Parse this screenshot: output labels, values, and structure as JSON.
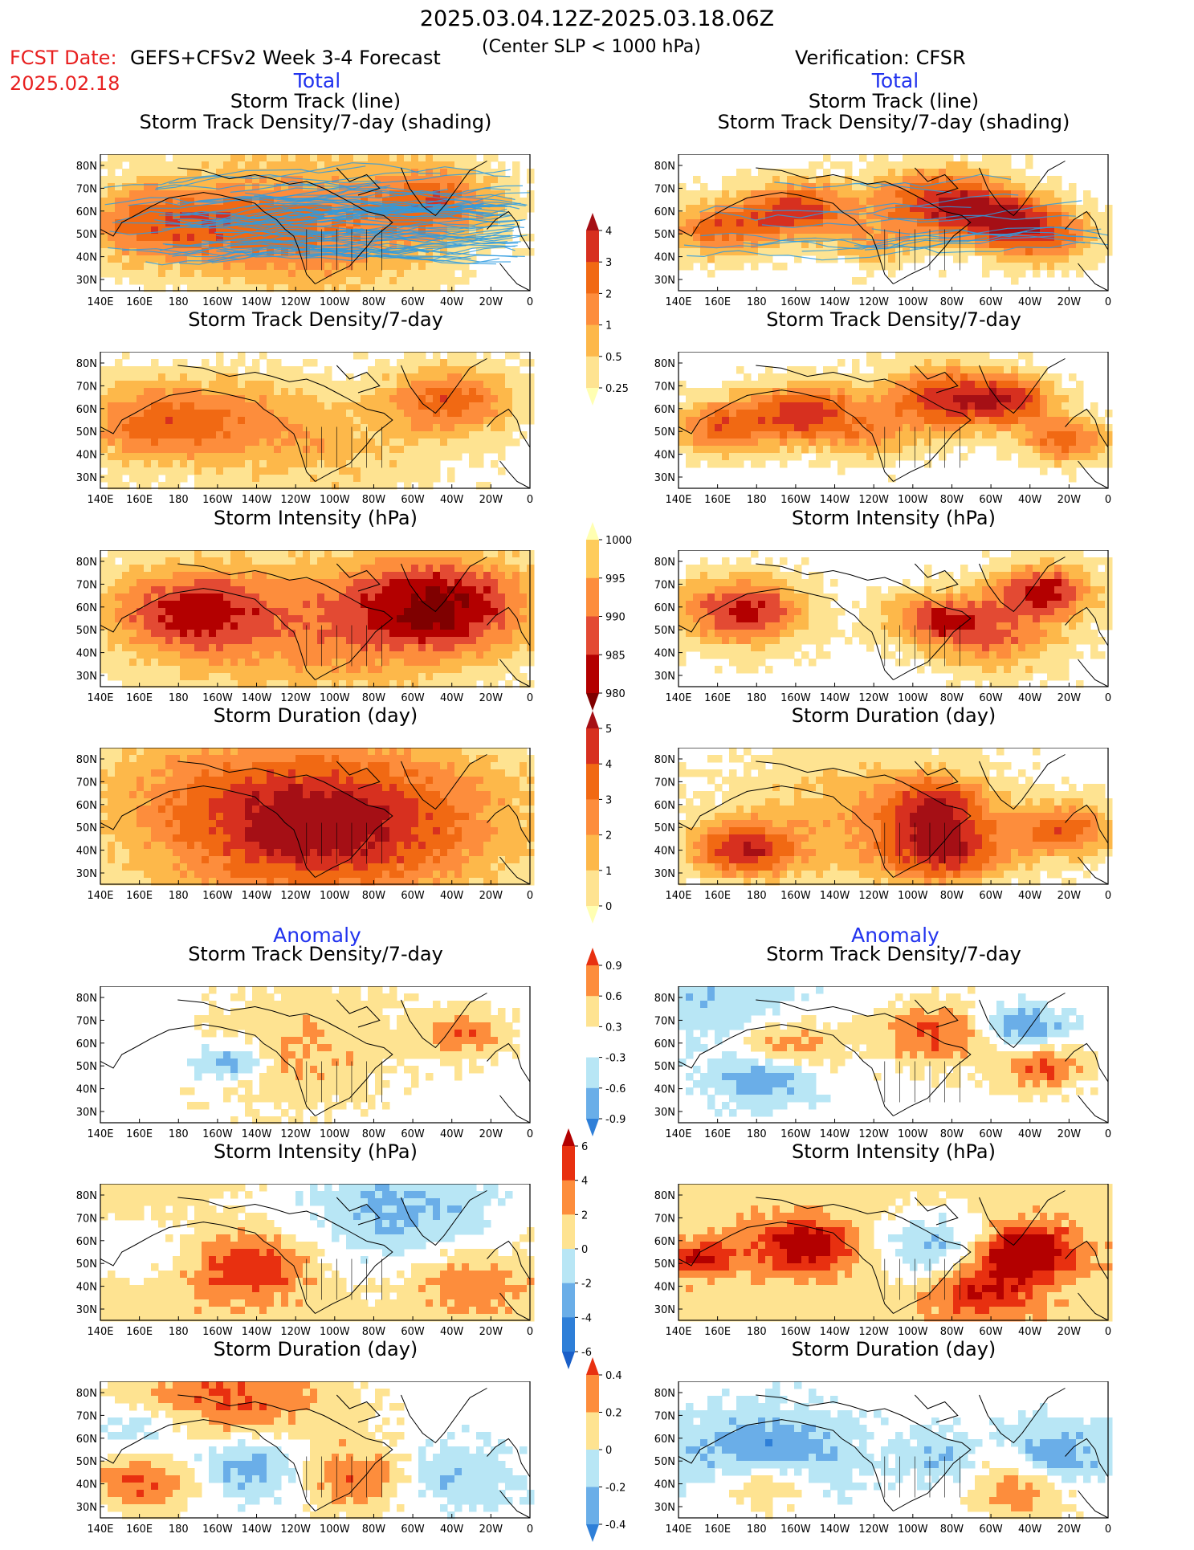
{
  "header": {
    "period": "2025.03.04.12Z-2025.03.18.06Z",
    "subtitle": "(Center SLP < 1000 hPa)",
    "fcst_label": "FCST Date:",
    "fcst_date": "2025.02.18",
    "model": "GEFS+CFSv2 Week 3-4 Forecast",
    "verification": "Verification: CFSR"
  },
  "sections": {
    "total": "Total",
    "anomaly": "Anomaly"
  },
  "axes": {
    "lat_ticks": [
      "80N",
      "70N",
      "60N",
      "50N",
      "40N",
      "30N"
    ],
    "lon_ticks": [
      "140E",
      "160E",
      "180",
      "160W",
      "140W",
      "120W",
      "100W",
      "80W",
      "60W",
      "40W",
      "20W",
      "0"
    ]
  },
  "panels": [
    {
      "title1": "Storm Track (line)",
      "title2": "Storm Track Density/7-day (shading)",
      "palette": "density",
      "pattern": "fcst_track",
      "tracks": true
    },
    {
      "title1": "Storm Track (line)",
      "title2": "Storm Track Density/7-day (shading)",
      "palette": "density",
      "pattern": "obs_track",
      "tracks": true
    },
    {
      "title1": "Storm Track Density/7-day",
      "palette": "density",
      "pattern": "fcst_density"
    },
    {
      "title1": "Storm Track Density/7-day",
      "palette": "density",
      "pattern": "obs_density"
    },
    {
      "title1": "Storm Intensity (hPa)",
      "palette": "intensity",
      "pattern": "fcst_intensity"
    },
    {
      "title1": "Storm Intensity (hPa)",
      "palette": "intensity",
      "pattern": "obs_intensity"
    },
    {
      "title1": "Storm Duration (day)",
      "palette": "duration",
      "pattern": "fcst_duration"
    },
    {
      "title1": "Storm Duration (day)",
      "palette": "duration",
      "pattern": "obs_duration"
    },
    {
      "title1": "Storm Track Density/7-day",
      "palette": "anom",
      "pattern": "fcst_anom_density"
    },
    {
      "title1": "Storm Track Density/7-day",
      "palette": "anom",
      "pattern": "obs_anom_density"
    },
    {
      "title1": "Storm Intensity (hPa)",
      "palette": "anom_int",
      "pattern": "fcst_anom_intensity"
    },
    {
      "title1": "Storm Intensity (hPa)",
      "palette": "anom_int",
      "pattern": "obs_anom_intensity"
    },
    {
      "title1": "Storm Duration (day)",
      "palette": "anom",
      "pattern": "fcst_anom_duration"
    },
    {
      "title1": "Storm Duration (day)",
      "palette": "anom",
      "pattern": "obs_anom_duration"
    }
  ],
  "colorbars": [
    {
      "name": "density",
      "labels": [
        "4",
        "3",
        "2",
        "1",
        "0.5",
        "0.25"
      ],
      "colors": [
        "#a50f15",
        "#d7301f",
        "#f16913",
        "#fd8d3c",
        "#fdb84a",
        "#fee391",
        "#ffffb2"
      ]
    },
    {
      "name": "intensity",
      "labels": [
        "1000",
        "995",
        "990",
        "985",
        "980"
      ],
      "colors": [
        "#ffffb2",
        "#fecc5c",
        "#fd8d3c",
        "#e34a33",
        "#b30000",
        "#7f0000"
      ]
    },
    {
      "name": "duration",
      "labels": [
        "5",
        "4",
        "3",
        "2",
        "1",
        "0"
      ],
      "colors": [
        "#a50f15",
        "#d7301f",
        "#f16913",
        "#fd8d3c",
        "#fdb84a",
        "#fee391",
        "#ffffb2"
      ]
    },
    {
      "name": "anom_density",
      "labels": [
        "0.9",
        "0.6",
        "0.3",
        "-0.3",
        "-0.6",
        "-0.9"
      ],
      "colors": [
        "#e83010",
        "#fd8d3c",
        "#fee391",
        "#ffffff",
        "#b8e6f5",
        "#6aaee8",
        "#2e7fd8"
      ]
    },
    {
      "name": "anom_intensity",
      "labels": [
        "6",
        "4",
        "2",
        "0",
        "-2",
        "-4",
        "-6"
      ],
      "colors": [
        "#b30000",
        "#e83010",
        "#fd8d3c",
        "#fee391",
        "#b8e6f5",
        "#6aaee8",
        "#2e7fd8",
        "#1a5fc8"
      ]
    },
    {
      "name": "anom_duration",
      "labels": [
        "0.4",
        "0.2",
        "0",
        "-0.2",
        "-0.4"
      ],
      "colors": [
        "#e83010",
        "#fd8d3c",
        "#fee391",
        "#b8e6f5",
        "#6aaee8",
        "#2e7fd8"
      ]
    }
  ],
  "colors": {
    "section_blue": "#2233ee",
    "fcst_red": "#e82020",
    "track_line": "#2e9be0",
    "coast": "#000000"
  }
}
